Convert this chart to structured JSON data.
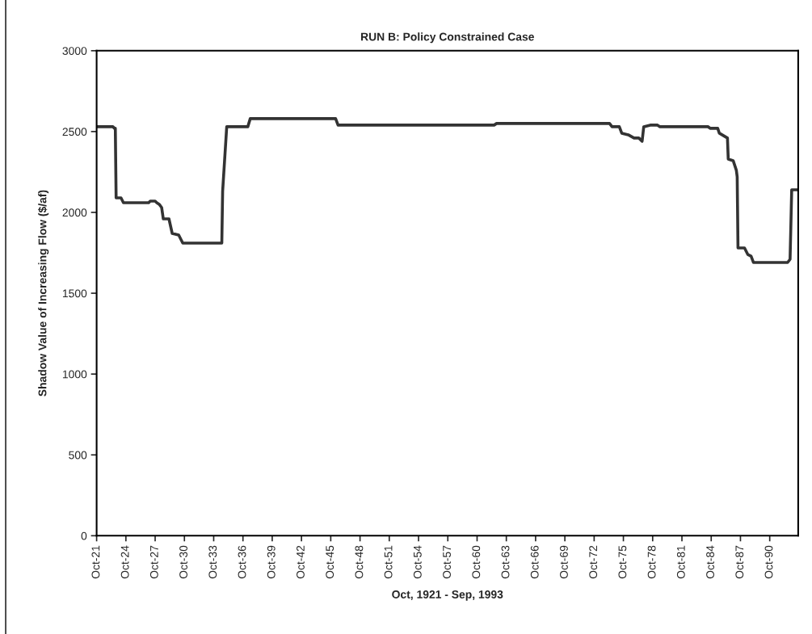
{
  "chart_data": {
    "type": "line",
    "title": "RUN B: Policy Constrained Case",
    "xlabel": "Oct, 1921 - Sep, 1993",
    "ylabel": "Shadow Value of Increasing Flow ($/af)",
    "x": [
      "1921-10",
      "1923-06",
      "1923-08",
      "1923-09",
      "1923-10",
      "1924-04",
      "1924-07",
      "1927-02",
      "1927-04",
      "1927-10",
      "1927-12",
      "1928-03",
      "1928-06",
      "1928-08",
      "1929-03",
      "1929-07",
      "1930-03",
      "1930-08",
      "1934-08",
      "1934-09",
      "1935-02",
      "1937-04",
      "1937-07",
      "1946-04",
      "1946-07",
      "1962-07",
      "1962-10",
      "1974-05",
      "1974-08",
      "1975-05",
      "1975-08",
      "1976-04",
      "1976-11",
      "1977-05",
      "1977-09",
      "1977-11",
      "1978-07",
      "1979-04",
      "1979-07",
      "1984-06",
      "1984-09",
      "1985-06",
      "1985-08",
      "1986-06",
      "1986-07",
      "1987-01",
      "1987-05",
      "1987-06",
      "1987-07",
      "1988-03",
      "1988-07",
      "1988-11",
      "1989-02",
      "1992-08",
      "1992-11",
      "1993-01",
      "1993-09"
    ],
    "series": [
      {
        "color": "#333333",
        "values": [
          2530,
          2530,
          2520,
          2520,
          2090,
          2090,
          2060,
          2060,
          2070,
          2070,
          2060,
          2050,
          2030,
          1960,
          1960,
          1870,
          1860,
          1810,
          1810,
          2130,
          2530,
          2530,
          2580,
          2580,
          2540,
          2540,
          2550,
          2550,
          2530,
          2530,
          2490,
          2480,
          2460,
          2460,
          2440,
          2530,
          2540,
          2540,
          2530,
          2530,
          2520,
          2520,
          2490,
          2460,
          2330,
          2320,
          2260,
          2220,
          1780,
          1780,
          1740,
          1730,
          1690,
          1690,
          1710,
          2140,
          2140
        ]
      }
    ],
    "xlim": [
      "1921-10",
      "1993-09"
    ],
    "xticks": [
      {
        "value": "1921-10",
        "label": "Oct-21"
      },
      {
        "value": "1924-10",
        "label": "Oct-24"
      },
      {
        "value": "1927-10",
        "label": "Oct-27"
      },
      {
        "value": "1930-10",
        "label": "Oct-30"
      },
      {
        "value": "1933-10",
        "label": "Oct-33"
      },
      {
        "value": "1936-10",
        "label": "Oct-36"
      },
      {
        "value": "1939-10",
        "label": "Oct-39"
      },
      {
        "value": "1942-10",
        "label": "Oct-42"
      },
      {
        "value": "1945-10",
        "label": "Oct-45"
      },
      {
        "value": "1948-10",
        "label": "Oct-48"
      },
      {
        "value": "1951-10",
        "label": "Oct-51"
      },
      {
        "value": "1954-10",
        "label": "Oct-54"
      },
      {
        "value": "1957-10",
        "label": "Oct-57"
      },
      {
        "value": "1960-10",
        "label": "Oct-60"
      },
      {
        "value": "1963-10",
        "label": "Oct-63"
      },
      {
        "value": "1966-10",
        "label": "Oct-66"
      },
      {
        "value": "1969-10",
        "label": "Oct-69"
      },
      {
        "value": "1972-10",
        "label": "Oct-72"
      },
      {
        "value": "1975-10",
        "label": "Oct-75"
      },
      {
        "value": "1978-10",
        "label": "Oct-78"
      },
      {
        "value": "1981-10",
        "label": "Oct-81"
      },
      {
        "value": "1984-10",
        "label": "Oct-84"
      },
      {
        "value": "1987-10",
        "label": "Oct-87"
      },
      {
        "value": "1990-10",
        "label": "Oct-90"
      }
    ],
    "ylim": [
      0,
      3000
    ],
    "yticks": [
      0,
      500,
      1000,
      1500,
      2000,
      2500,
      3000
    ],
    "grid": false,
    "line_style": "solid",
    "marker": "none"
  }
}
